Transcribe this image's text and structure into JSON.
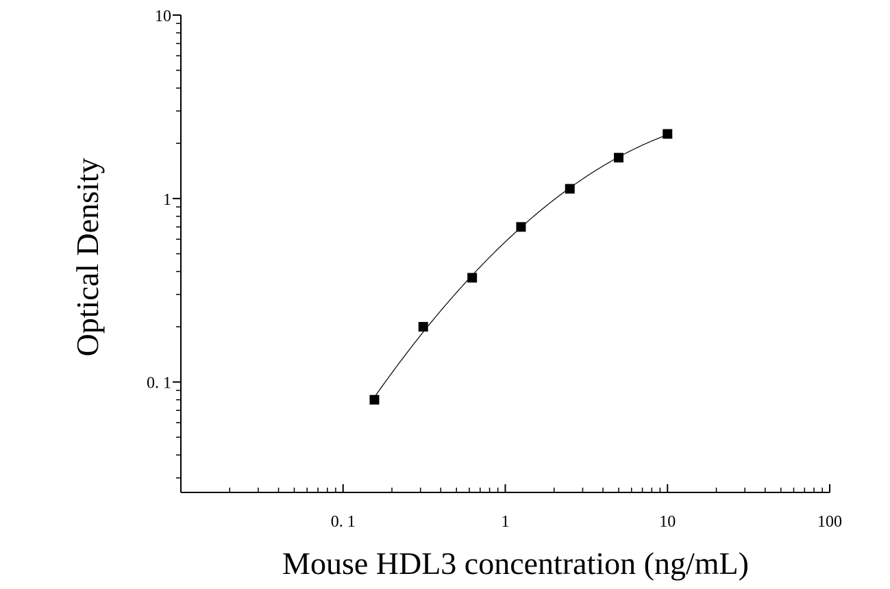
{
  "chart_data": {
    "type": "scatter",
    "title": "",
    "xlabel": "Mouse HDL3 concentration (ng/mL)",
    "ylabel": "Optical Density",
    "x_scale": "log",
    "y_scale": "log",
    "xlim": [
      0.01,
      100
    ],
    "ylim": [
      0.025,
      10
    ],
    "x_ticks": [
      {
        "value": 0.1,
        "label": "0. 1"
      },
      {
        "value": 1,
        "label": "1"
      },
      {
        "value": 10,
        "label": "10"
      },
      {
        "value": 100,
        "label": "100"
      }
    ],
    "y_ticks": [
      {
        "value": 0.1,
        "label": "0. 1"
      },
      {
        "value": 1,
        "label": "1"
      },
      {
        "value": 10,
        "label": "10"
      }
    ],
    "grid": false,
    "legend": "none",
    "marker": "square",
    "color": "#000000",
    "has_fit_curve": true,
    "series": [
      {
        "x": [
          0.156,
          0.312,
          0.625,
          1.25,
          2.5,
          5,
          10
        ],
        "y": [
          0.08,
          0.2,
          0.37,
          0.7,
          1.13,
          1.67,
          2.25
        ]
      }
    ]
  }
}
